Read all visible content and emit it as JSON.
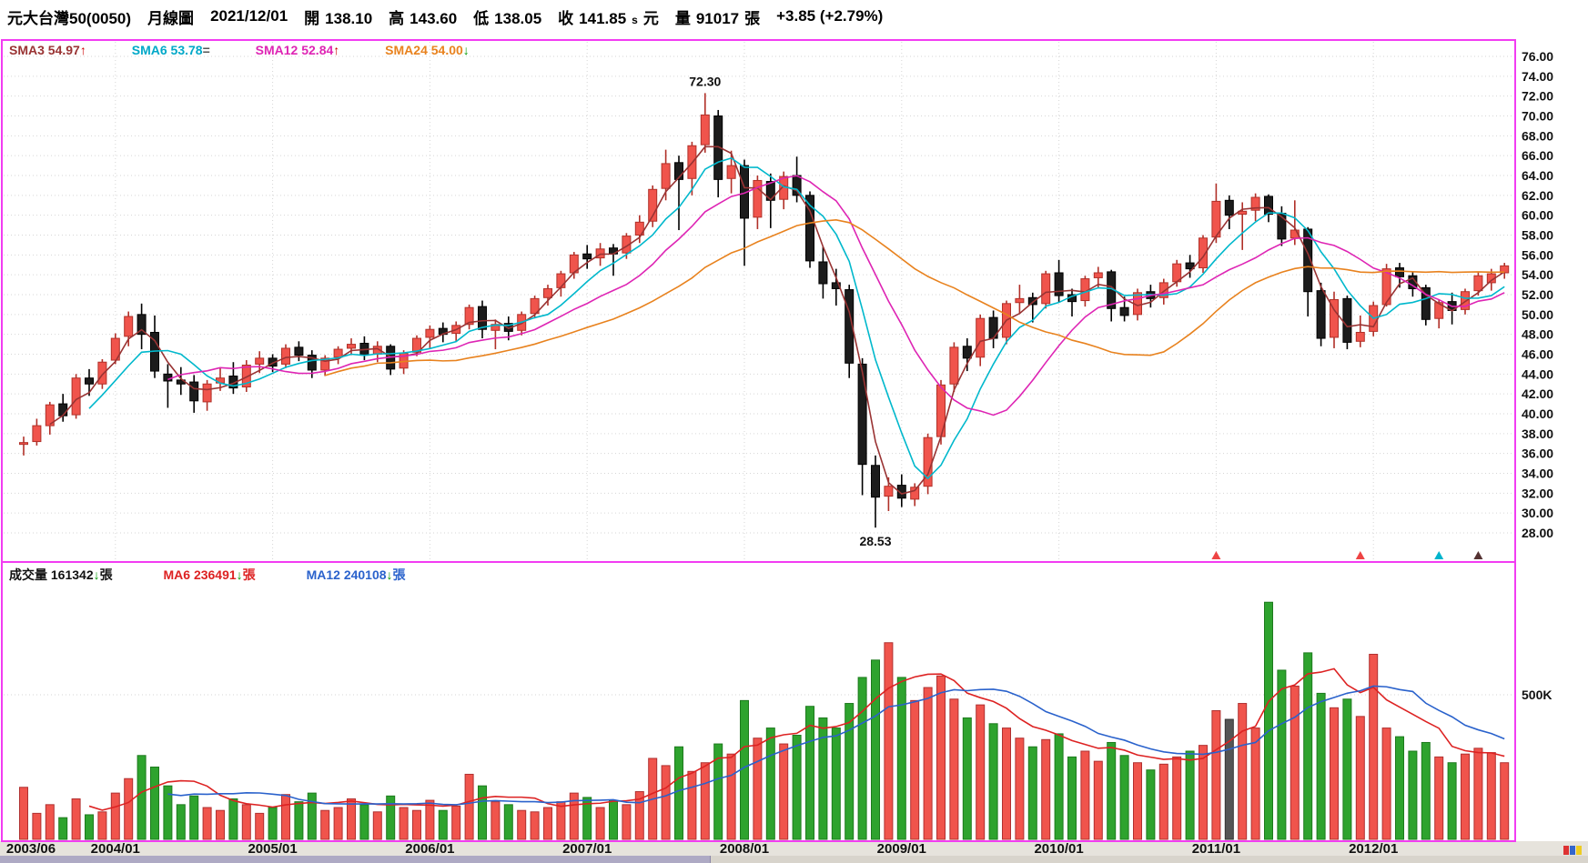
{
  "header": {
    "stock_name": "元大台灣50(0050)",
    "chart_type": "月線圖",
    "date": "2021/12/01",
    "open_label": "開",
    "open": "138.10",
    "high_label": "高",
    "high": "143.60",
    "low_label": "低",
    "low": "138.05",
    "close_label": "收",
    "close": "141.85",
    "close_flag": "s",
    "close_unit": "元",
    "volume_label": "量",
    "volume": "91017",
    "volume_unit": "張",
    "change": "+3.85 (+2.79%)"
  },
  "price_legend": {
    "sma3_label": "SMA3",
    "sma3": "54.97",
    "sma3_arrow": "↑",
    "sma6_label": "SMA6",
    "sma6": "53.78",
    "sma6_arrow": "=",
    "sma12_label": "SMA12",
    "sma12": "52.84",
    "sma12_arrow": "↑",
    "sma24_label": "SMA24",
    "sma24": "54.00",
    "sma24_arrow": "↓"
  },
  "volume_legend": {
    "vol_label": "成交量",
    "vol": "161342",
    "vol_arrow": "↓",
    "vol_unit": "張",
    "ma6_label": "MA6",
    "ma6": "236491",
    "ma6_arrow": "↓",
    "ma6_unit": "張",
    "ma12_label": "MA12",
    "ma12": "240108",
    "ma12_arrow": "↓",
    "ma12_unit": "張"
  },
  "colors": {
    "border": "#f23cf2",
    "candle_up": "#f0544c",
    "candle_up_stroke": "#b03028",
    "candle_down": "#1c1c1c",
    "candle_down_stroke": "#000000",
    "vol_up": "#f0544c",
    "vol_down": "#2ea32e",
    "vol_gray": "#555555",
    "grid": "#d6d6d6",
    "axis_text": "#111111",
    "strip_bg": "#e6e3dc"
  },
  "chart_data": {
    "type": "candlestick",
    "title": "元大台灣50(0050) 月線圖",
    "start_month": "2003/06",
    "ylim": [
      28,
      76
    ],
    "y_ticks": [
      "76.00",
      "74.00",
      "72.00",
      "70.00",
      "68.00",
      "66.00",
      "64.00",
      "62.00",
      "60.00",
      "58.00",
      "56.00",
      "54.00",
      "52.00",
      "50.00",
      "48.00",
      "46.00",
      "44.00",
      "42.00",
      "40.00",
      "38.00",
      "36.00",
      "34.00",
      "32.00",
      "30.00",
      "28.00"
    ],
    "x_labels": [
      {
        "label": "2003/06",
        "index": 0
      },
      {
        "label": "2004/01",
        "index": 7
      },
      {
        "label": "2005/01",
        "index": 19
      },
      {
        "label": "2006/01",
        "index": 31
      },
      {
        "label": "2007/01",
        "index": 43
      },
      {
        "label": "2008/01",
        "index": 55
      },
      {
        "label": "2009/01",
        "index": 67
      },
      {
        "label": "2010/01",
        "index": 79
      },
      {
        "label": "2011/01",
        "index": 91
      },
      {
        "label": "2012/01",
        "index": 103
      }
    ],
    "annotations": [
      {
        "text": "72.30",
        "index": 52,
        "price": 72.3,
        "position": "above"
      },
      {
        "text": "28.53",
        "index": 65,
        "price": 28.53,
        "position": "below"
      }
    ],
    "ohlc": [
      [
        37.0,
        37.7,
        35.8,
        37.1
      ],
      [
        37.2,
        39.5,
        36.8,
        38.8
      ],
      [
        38.8,
        41.2,
        37.9,
        40.9
      ],
      [
        41.0,
        42.0,
        39.2,
        39.8
      ],
      [
        39.9,
        44.0,
        39.5,
        43.6
      ],
      [
        43.6,
        44.5,
        41.8,
        43.0
      ],
      [
        43.0,
        45.5,
        42.5,
        45.2
      ],
      [
        45.4,
        48.1,
        45.0,
        47.6
      ],
      [
        47.8,
        50.3,
        46.8,
        49.8
      ],
      [
        50.0,
        51.1,
        46.5,
        48.0
      ],
      [
        48.2,
        49.9,
        43.6,
        44.3
      ],
      [
        44.0,
        45.0,
        40.6,
        43.3
      ],
      [
        43.4,
        44.7,
        41.9,
        43.0
      ],
      [
        43.2,
        43.9,
        40.1,
        41.3
      ],
      [
        41.2,
        43.4,
        40.3,
        43.0
      ],
      [
        43.1,
        44.6,
        42.3,
        43.6
      ],
      [
        43.8,
        45.2,
        42.0,
        42.6
      ],
      [
        42.7,
        45.4,
        42.2,
        44.9
      ],
      [
        45.0,
        46.3,
        44.1,
        45.6
      ],
      [
        45.6,
        46.0,
        44.2,
        44.8
      ],
      [
        45.0,
        47.0,
        44.6,
        46.6
      ],
      [
        46.7,
        47.3,
        45.3,
        45.9
      ],
      [
        45.9,
        46.4,
        43.6,
        44.4
      ],
      [
        44.4,
        45.9,
        43.8,
        45.6
      ],
      [
        45.7,
        46.8,
        45.0,
        46.5
      ],
      [
        46.6,
        47.6,
        45.9,
        47.0
      ],
      [
        47.1,
        47.8,
        45.4,
        45.9
      ],
      [
        46.0,
        47.3,
        45.2,
        46.8
      ],
      [
        46.8,
        47.0,
        43.9,
        44.5
      ],
      [
        44.6,
        46.4,
        44.0,
        46.1
      ],
      [
        46.2,
        47.9,
        45.8,
        47.6
      ],
      [
        47.7,
        48.9,
        46.6,
        48.5
      ],
      [
        48.6,
        49.2,
        47.2,
        48.0
      ],
      [
        48.1,
        49.3,
        47.3,
        48.9
      ],
      [
        49.0,
        51.0,
        48.5,
        50.7
      ],
      [
        50.8,
        51.4,
        47.6,
        48.5
      ],
      [
        48.4,
        49.5,
        46.5,
        49.0
      ],
      [
        49.1,
        49.8,
        47.4,
        48.3
      ],
      [
        48.4,
        50.3,
        47.9,
        50.0
      ],
      [
        50.1,
        51.9,
        49.6,
        51.6
      ],
      [
        51.7,
        53.0,
        50.9,
        52.6
      ],
      [
        52.7,
        54.4,
        51.8,
        54.1
      ],
      [
        54.2,
        56.3,
        53.6,
        56.0
      ],
      [
        56.1,
        57.0,
        54.6,
        55.6
      ],
      [
        55.7,
        57.2,
        54.9,
        56.6
      ],
      [
        56.7,
        57.1,
        53.9,
        56.1
      ],
      [
        56.2,
        58.2,
        55.6,
        57.9
      ],
      [
        58.0,
        60.0,
        57.2,
        59.3
      ],
      [
        59.4,
        63.0,
        58.8,
        62.6
      ],
      [
        62.7,
        66.6,
        61.5,
        65.2
      ],
      [
        65.3,
        66.0,
        58.5,
        63.6
      ],
      [
        63.7,
        67.4,
        62.0,
        67.0
      ],
      [
        67.1,
        72.3,
        66.3,
        70.1
      ],
      [
        70.0,
        70.6,
        61.8,
        63.6
      ],
      [
        63.7,
        66.5,
        62.2,
        65.0
      ],
      [
        65.0,
        65.6,
        54.9,
        59.7
      ],
      [
        59.8,
        64.0,
        58.6,
        63.5
      ],
      [
        63.4,
        64.2,
        58.7,
        61.5
      ],
      [
        61.6,
        64.4,
        60.6,
        63.9
      ],
      [
        64.0,
        65.9,
        61.3,
        62.0
      ],
      [
        62.0,
        62.4,
        54.7,
        55.4
      ],
      [
        55.3,
        56.8,
        51.6,
        53.1
      ],
      [
        53.2,
        54.6,
        50.9,
        52.6
      ],
      [
        52.5,
        53.0,
        43.6,
        45.1
      ],
      [
        45.0,
        45.6,
        31.8,
        34.9
      ],
      [
        34.8,
        35.8,
        28.53,
        31.6
      ],
      [
        31.7,
        33.6,
        30.2,
        32.7
      ],
      [
        32.8,
        33.9,
        30.6,
        31.5
      ],
      [
        31.4,
        33.0,
        30.7,
        32.6
      ],
      [
        32.7,
        38.0,
        31.9,
        37.6
      ],
      [
        37.7,
        43.4,
        36.9,
        42.9
      ],
      [
        43.0,
        47.2,
        42.2,
        46.7
      ],
      [
        46.8,
        47.6,
        44.3,
        45.6
      ],
      [
        45.7,
        50.0,
        44.8,
        49.6
      ],
      [
        49.7,
        50.4,
        46.6,
        47.6
      ],
      [
        47.7,
        51.4,
        47.0,
        51.1
      ],
      [
        51.2,
        53.0,
        50.1,
        51.6
      ],
      [
        51.7,
        52.2,
        49.2,
        51.0
      ],
      [
        51.1,
        54.4,
        50.6,
        54.1
      ],
      [
        54.2,
        55.5,
        51.2,
        51.9
      ],
      [
        52.0,
        52.6,
        49.8,
        51.3
      ],
      [
        51.4,
        53.9,
        50.8,
        53.6
      ],
      [
        53.7,
        54.8,
        52.6,
        54.2
      ],
      [
        54.3,
        54.5,
        49.3,
        50.6
      ],
      [
        50.7,
        51.8,
        49.3,
        49.9
      ],
      [
        50.0,
        52.6,
        49.4,
        52.2
      ],
      [
        52.3,
        53.0,
        50.7,
        51.6
      ],
      [
        51.7,
        53.6,
        51.0,
        53.2
      ],
      [
        53.3,
        55.5,
        52.8,
        55.1
      ],
      [
        55.2,
        56.0,
        53.7,
        54.6
      ],
      [
        54.7,
        58.0,
        54.2,
        57.7
      ],
      [
        57.8,
        63.2,
        57.2,
        61.4
      ],
      [
        61.5,
        62.0,
        58.6,
        60.0
      ],
      [
        60.1,
        61.3,
        56.5,
        60.4
      ],
      [
        60.5,
        62.2,
        59.4,
        61.8
      ],
      [
        61.9,
        62.1,
        59.3,
        60.1
      ],
      [
        60.2,
        60.9,
        56.9,
        57.6
      ],
      [
        57.7,
        61.5,
        57.0,
        58.5
      ],
      [
        58.6,
        58.8,
        49.8,
        52.3
      ],
      [
        52.4,
        53.2,
        46.8,
        47.6
      ],
      [
        47.7,
        52.3,
        46.6,
        51.5
      ],
      [
        51.6,
        51.9,
        46.5,
        47.2
      ],
      [
        47.3,
        49.9,
        46.7,
        48.2
      ],
      [
        48.3,
        51.3,
        47.8,
        50.9
      ],
      [
        51.0,
        55.1,
        50.8,
        54.6
      ],
      [
        54.7,
        55.2,
        52.7,
        53.8
      ],
      [
        53.9,
        54.3,
        51.8,
        52.6
      ],
      [
        52.7,
        53.0,
        48.9,
        49.5
      ],
      [
        49.6,
        51.5,
        48.6,
        51.2
      ],
      [
        51.3,
        52.2,
        49.0,
        50.4
      ],
      [
        50.5,
        52.6,
        50.0,
        52.3
      ],
      [
        52.4,
        54.3,
        51.9,
        53.9
      ],
      [
        53.2,
        54.6,
        52.4,
        54.1
      ],
      [
        54.2,
        55.2,
        53.6,
        54.9
      ]
    ],
    "volume_k": [
      180,
      90,
      120,
      75,
      140,
      85,
      95,
      160,
      210,
      290,
      250,
      185,
      120,
      150,
      110,
      100,
      140,
      120,
      90,
      110,
      155,
      130,
      160,
      100,
      110,
      140,
      120,
      95,
      150,
      110,
      100,
      135,
      100,
      115,
      225,
      185,
      130,
      120,
      100,
      95,
      110,
      130,
      160,
      145,
      110,
      135,
      120,
      165,
      280,
      255,
      320,
      235,
      265,
      330,
      295,
      480,
      350,
      385,
      330,
      360,
      460,
      420,
      385,
      470,
      560,
      620,
      680,
      560,
      480,
      525,
      565,
      485,
      420,
      465,
      400,
      385,
      350,
      320,
      345,
      365,
      285,
      305,
      270,
      335,
      290,
      265,
      240,
      260,
      285,
      305,
      325,
      445,
      415,
      470,
      385,
      820,
      585,
      530,
      645,
      505,
      455,
      485,
      425,
      640,
      385,
      355,
      305,
      335,
      285,
      265,
      295,
      315,
      300,
      265
    ],
    "volume_tick": {
      "label": "500K",
      "value": 500
    },
    "volume_gray_indices": [
      92
    ],
    "price_mas": [
      {
        "name": "SMA3",
        "period": 3,
        "color": "#993333"
      },
      {
        "name": "SMA6",
        "period": 6,
        "color": "#00b8cc"
      },
      {
        "name": "SMA12",
        "period": 12,
        "color": "#de25b4"
      },
      {
        "name": "SMA24",
        "period": 24,
        "color": "#e8821e"
      }
    ],
    "volume_mas": [
      {
        "name": "MA6",
        "period": 6,
        "color": "#dd2222"
      },
      {
        "name": "MA12",
        "period": 12,
        "color": "#2a62cc"
      }
    ],
    "markers": [
      {
        "index": 91,
        "color": "#ee4444"
      },
      {
        "index": 102,
        "color": "#ee4444"
      },
      {
        "index": 108,
        "color": "#00b4cc"
      },
      {
        "index": 111,
        "color": "#553333"
      }
    ]
  }
}
